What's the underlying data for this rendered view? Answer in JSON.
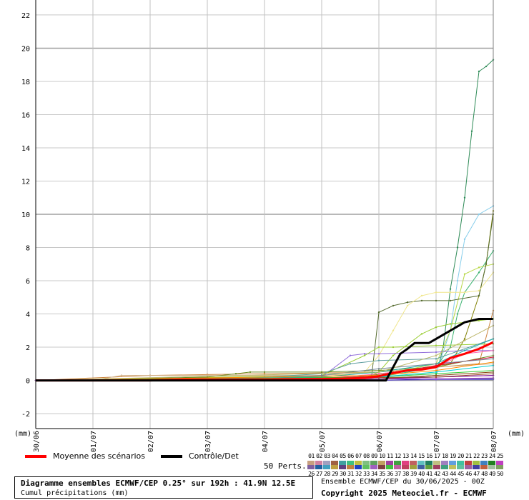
{
  "chart_data": {
    "type": "line",
    "unit_left": "(mm)",
    "unit_right": "(mm)",
    "y_ticks": [
      -2,
      0,
      2,
      4,
      6,
      8,
      10,
      12,
      14,
      16,
      18,
      20,
      22
    ],
    "ylim": [
      -2.9,
      22.9
    ],
    "xlim": [
      0,
      192
    ],
    "x_tick_labels": [
      "30/06",
      "01/07",
      "02/07",
      "03/07",
      "04/07",
      "05/07",
      "06/07",
      "07/07",
      "08/07"
    ],
    "x_tick_hours": [
      0,
      24,
      48,
      72,
      96,
      120,
      144,
      168,
      192
    ],
    "grid": true,
    "legend": {
      "mean_label": "Moyenne des scénarios",
      "control_label": "Contrôle/Det",
      "perts_label": "50 Perts.",
      "member_numbers_top": [
        "01",
        "02",
        "03",
        "04",
        "05",
        "06",
        "07",
        "08",
        "09",
        "10",
        "11",
        "12",
        "13",
        "14",
        "15",
        "16",
        "17",
        "18",
        "19",
        "20",
        "21",
        "22",
        "23",
        "24",
        "25"
      ],
      "member_numbers_bottom": [
        "26",
        "27",
        "28",
        "29",
        "30",
        "31",
        "32",
        "33",
        "34",
        "35",
        "36",
        "37",
        "38",
        "39",
        "40",
        "41",
        "42",
        "43",
        "44",
        "45",
        "46",
        "47",
        "48",
        "49",
        "50"
      ]
    },
    "series": [
      {
        "name": "Moyenne des scénarios",
        "color": "#ff0000",
        "width": 3,
        "x": [
          0,
          24,
          48,
          60,
          72,
          96,
          120,
          132,
          138,
          144,
          150,
          156,
          162,
          168,
          174,
          180,
          186,
          192
        ],
        "y": [
          0,
          0,
          0,
          0.05,
          0.05,
          0.05,
          0.08,
          0.12,
          0.15,
          0.25,
          0.45,
          0.6,
          0.65,
          0.8,
          1.35,
          1.6,
          1.9,
          2.3
        ]
      },
      {
        "name": "Contrôle/Det",
        "color": "#000000",
        "width": 3,
        "x": [
          0,
          24,
          48,
          72,
          96,
          120,
          132,
          138,
          144,
          147,
          150,
          153,
          156,
          159,
          162,
          165,
          168,
          174,
          180,
          186,
          192
        ],
        "y": [
          0,
          0,
          0,
          0,
          0,
          0,
          0,
          0,
          0,
          0,
          0.8,
          1.6,
          1.9,
          2.25,
          2.25,
          2.25,
          2.5,
          3.0,
          3.5,
          3.7,
          3.7
        ]
      },
      {
        "color": "#2e8b57",
        "width": 1,
        "x": [
          0,
          120,
          144,
          168,
          171,
          174,
          177,
          180,
          183,
          186,
          189,
          192
        ],
        "y": [
          0,
          0,
          0.1,
          0.3,
          2.0,
          5.5,
          8.0,
          11.0,
          15.0,
          18.6,
          18.9,
          19.3
        ]
      },
      {
        "color": "#87ceeb",
        "width": 1,
        "x": [
          0,
          120,
          144,
          168,
          174,
          177,
          180,
          186,
          192
        ],
        "y": [
          0,
          0,
          0.2,
          0.4,
          3.0,
          6.0,
          8.5,
          10.0,
          10.5
        ]
      },
      {
        "color": "#808000",
        "width": 1,
        "x": [
          0,
          132,
          150,
          174,
          180,
          186,
          189,
          192
        ],
        "y": [
          0,
          0.1,
          0.5,
          1.0,
          2.5,
          5.1,
          7.0,
          10.2
        ]
      },
      {
        "color": "#3cb371",
        "width": 1,
        "x": [
          0,
          144,
          168,
          174,
          177,
          180,
          186,
          192
        ],
        "y": [
          0,
          0.2,
          0.8,
          2.0,
          4.0,
          5.3,
          6.5,
          7.8
        ]
      },
      {
        "color": "#b8d848",
        "width": 1,
        "x": [
          0,
          144,
          168,
          174,
          180,
          186,
          192
        ],
        "y": [
          0,
          0.3,
          1.0,
          3.0,
          6.4,
          6.8,
          7.0
        ]
      },
      {
        "color": "#9acd32",
        "width": 1,
        "x": [
          0,
          138,
          144,
          150,
          162,
          168,
          174,
          180,
          186,
          192
        ],
        "y": [
          0,
          0.2,
          0.5,
          1.5,
          2.8,
          3.2,
          3.4,
          3.5,
          3.6,
          3.7
        ]
      },
      {
        "color": "#556b2f",
        "width": 1,
        "x": [
          0,
          138,
          141,
          144,
          150,
          156,
          162,
          168,
          174,
          186,
          189,
          192
        ],
        "y": [
          0,
          0.05,
          0.3,
          4.1,
          4.5,
          4.7,
          4.8,
          4.8,
          4.8,
          5.1,
          7.0,
          10.0
        ]
      },
      {
        "color": "#f0e68c",
        "width": 1,
        "x": [
          0,
          120,
          138,
          144,
          150,
          156,
          162,
          168,
          174,
          180,
          186,
          192
        ],
        "y": [
          0,
          0.2,
          0.5,
          1.5,
          3.0,
          4.5,
          5.1,
          5.3,
          5.3,
          5.3,
          5.4,
          6.5
        ]
      },
      {
        "color": "#cd853f",
        "width": 1,
        "x": [
          0,
          48,
          72,
          96,
          120,
          144,
          168,
          186,
          192
        ],
        "y": [
          0,
          0.3,
          0.35,
          0.4,
          0.45,
          0.5,
          0.8,
          1.0,
          4.2
        ]
      },
      {
        "color": "#9370db",
        "width": 1,
        "x": [
          0,
          96,
          120,
          132,
          138,
          144,
          168,
          180,
          192
        ],
        "y": [
          0,
          0.1,
          0.2,
          1.5,
          1.6,
          1.6,
          1.7,
          1.8,
          1.8
        ]
      },
      {
        "color": "#9acd32",
        "width": 1,
        "x": [
          0,
          120,
          138,
          144,
          150,
          168,
          192
        ],
        "y": [
          0,
          0.3,
          1.5,
          2.0,
          2.0,
          2.1,
          2.2
        ]
      },
      {
        "color": "#d2b48c",
        "width": 1,
        "x": [
          0,
          24,
          36,
          48,
          72,
          96,
          120,
          144,
          168,
          192
        ],
        "y": [
          0,
          0,
          0.3,
          0.3,
          0.3,
          0.3,
          0.3,
          0.5,
          0.8,
          1.0
        ]
      },
      {
        "color": "#6b8e23",
        "width": 1,
        "x": [
          0,
          72,
          84,
          90,
          96,
          120,
          144,
          168,
          192
        ],
        "y": [
          0,
          0.2,
          0.4,
          0.5,
          0.5,
          0.5,
          0.6,
          0.8,
          1.5
        ]
      },
      {
        "color": "#5f9ea0",
        "width": 1,
        "x": [
          0,
          96,
          120,
          132,
          144,
          168,
          192
        ],
        "y": [
          0,
          0.2,
          0.4,
          1.0,
          1.2,
          1.3,
          2.5
        ]
      },
      {
        "color": "#ff69b4",
        "width": 1,
        "x": [
          0,
          120,
          144,
          168,
          180,
          192
        ],
        "y": [
          0,
          0.1,
          0.4,
          0.8,
          1.6,
          1.8
        ]
      },
      {
        "color": "#dc143c",
        "width": 1,
        "x": [
          0,
          120,
          144,
          168,
          192
        ],
        "y": [
          0,
          0.1,
          0.3,
          0.9,
          1.4
        ]
      },
      {
        "color": "#4169e1",
        "width": 1,
        "x": [
          0,
          144,
          168,
          192
        ],
        "y": [
          0,
          0.1,
          0.2,
          0.3
        ]
      },
      {
        "color": "#000080",
        "width": 1,
        "x": [
          0,
          144,
          168,
          192
        ],
        "y": [
          0,
          0,
          0.1,
          0.1
        ]
      },
      {
        "color": "#8b008b",
        "width": 1,
        "x": [
          0,
          120,
          144,
          168,
          192
        ],
        "y": [
          0,
          0.05,
          0.1,
          0.2,
          0.3
        ]
      },
      {
        "color": "#20b2aa",
        "width": 1,
        "x": [
          0,
          120,
          144,
          168,
          180,
          192
        ],
        "y": [
          0,
          0.2,
          0.5,
          1.0,
          1.8,
          2.5
        ]
      },
      {
        "color": "#ff8c00",
        "width": 1,
        "x": [
          0,
          144,
          168,
          192
        ],
        "y": [
          0,
          0.3,
          0.6,
          1.1
        ]
      },
      {
        "color": "#708090",
        "width": 1,
        "x": [
          0,
          96,
          120,
          144,
          168,
          192
        ],
        "y": [
          0,
          0.1,
          0.3,
          0.7,
          1.0,
          1.3
        ]
      },
      {
        "color": "#bdb76b",
        "width": 1,
        "x": [
          0,
          144,
          168,
          180,
          192
        ],
        "y": [
          0,
          0.5,
          1.5,
          2.4,
          3.3
        ]
      },
      {
        "color": "#32cd32",
        "width": 1,
        "x": [
          0,
          144,
          168,
          192
        ],
        "y": [
          0,
          0.2,
          0.4,
          0.6
        ]
      },
      {
        "color": "#8b4513",
        "width": 1,
        "x": [
          0,
          144,
          168,
          192
        ],
        "y": [
          0,
          0.1,
          0.3,
          0.5
        ]
      },
      {
        "color": "#6a5acd",
        "width": 1,
        "x": [
          0,
          144,
          168,
          192
        ],
        "y": [
          0,
          0.0,
          0.05,
          0.05
        ]
      },
      {
        "color": "#00ced1",
        "width": 1,
        "x": [
          0,
          120,
          144,
          168,
          192
        ],
        "y": [
          0,
          0.1,
          0.2,
          0.5,
          0.9
        ]
      },
      {
        "color": "#a0522d",
        "width": 1,
        "x": [
          0,
          168,
          192
        ],
        "y": [
          0,
          0.2,
          0.4
        ]
      },
      {
        "color": "#ba55d3",
        "width": 1,
        "x": [
          0,
          168,
          192
        ],
        "y": [
          0,
          0.1,
          0.15
        ]
      }
    ]
  },
  "footer": {
    "title": "Diagramme ensembles ECMWF/CEP 0.25° sur 192h : 41.9N 12.5E",
    "subtitle": "Cumul précipitations (mm)",
    "run_info": "Ensemble ECMWF/CEP du 30/06/2025 - 00Z",
    "copyright": "Copyright 2025 Meteociel.fr - ECMWF"
  },
  "swatch_colors_top": [
    "#c8a080",
    "#d080a0",
    "#a0a0c0",
    "#a06040",
    "#40a0a0",
    "#40c080",
    "#c0c040",
    "#80c080",
    "#60a060",
    "#c0a060",
    "#a040a0",
    "#40a040",
    "#e04080",
    "#c06060",
    "#60c0c0",
    "#208060",
    "#c0c080",
    "#a080c0",
    "#60a0e0",
    "#40c0a0",
    "#c04040",
    "#a0c040",
    "#4080c0",
    "#208020",
    "#c040c0"
  ],
  "swatch_colors_bottom": [
    "#8060a0",
    "#2060a0",
    "#40a0c0",
    "#c0a040",
    "#604080",
    "#c08040",
    "#2040c0",
    "#60c060",
    "#a060c0",
    "#804040",
    "#40c040",
    "#c060a0",
    "#c04060",
    "#a0a040",
    "#4060a0",
    "#60a040",
    "#a04060",
    "#40a080",
    "#c0c060",
    "#60c0a0",
    "#a060a0",
    "#4040a0",
    "#c06040",
    "#a0c0a0",
    "#80a060"
  ]
}
